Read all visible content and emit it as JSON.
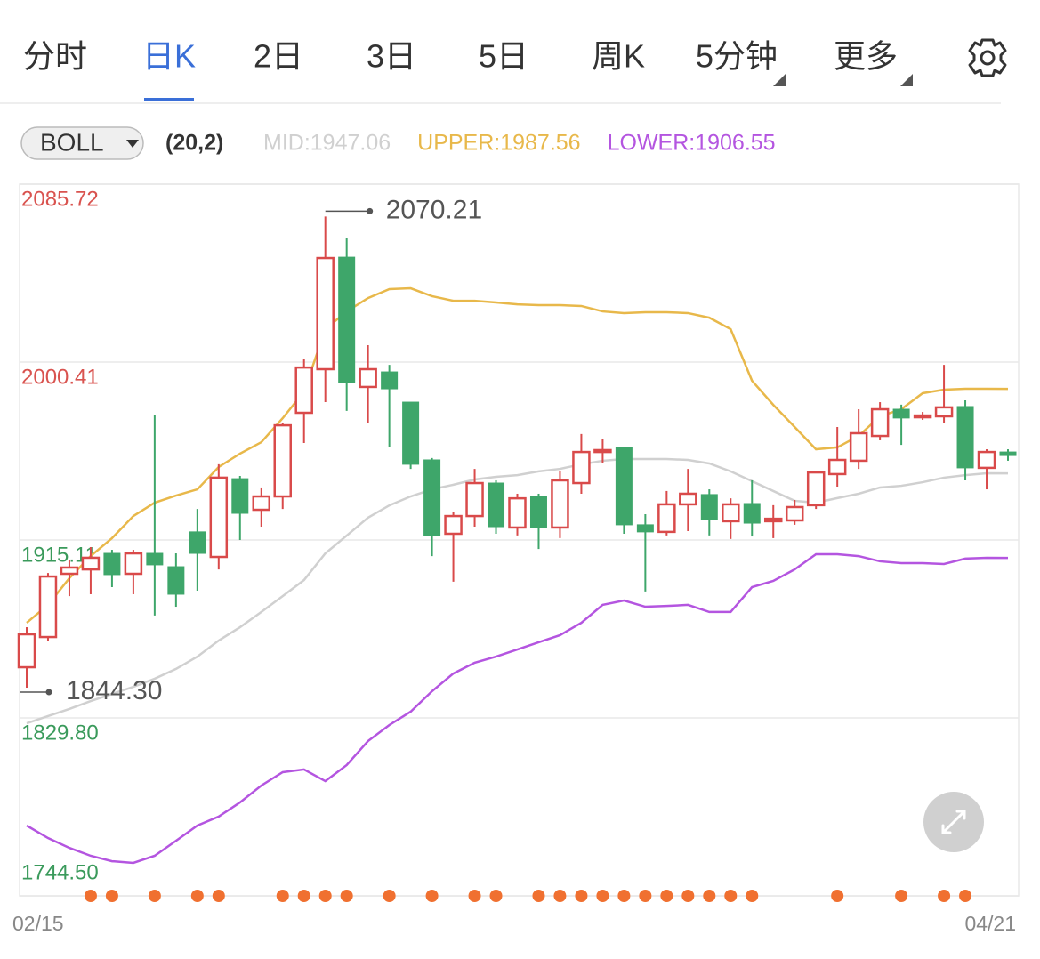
{
  "tabs": [
    "分时",
    "日K",
    "2日",
    "3日",
    "5日",
    "周K",
    "5分钟",
    "更多"
  ],
  "active_tab": 1,
  "indicator": {
    "name": "BOLL",
    "params": "(20,2)"
  },
  "chart_data": {
    "type": "candlestick",
    "categories": [
      "02/15",
      null,
      null,
      null,
      null,
      null,
      null,
      null,
      null,
      null,
      null,
      null,
      null,
      null,
      null,
      null,
      null,
      null,
      null,
      null,
      null,
      null,
      null,
      null,
      null,
      null,
      null,
      null,
      null,
      null,
      null,
      null,
      null,
      null,
      null,
      null,
      null,
      null,
      null,
      null,
      null,
      null,
      null,
      null,
      null,
      null,
      "04/21"
    ],
    "open": [
      1854.1,
      1868.6,
      1898.9,
      1901.0,
      1908.7,
      1898.9,
      1908.7,
      1902.3,
      1919.0,
      1907.0,
      1944.5,
      1929.6,
      1936.0,
      1976.1,
      1997.0,
      2050.7,
      1988.5,
      1995.7,
      1981.2,
      1953.5,
      1918.1,
      1926.6,
      1942.4,
      1921.1,
      1935.9,
      1921.1,
      1942.4,
      1957.3,
      1959.5,
      1922.4,
      1919.0,
      1932.2,
      1936.9,
      1924.1,
      1932.6,
      1924.1,
      1924.5,
      1931.8,
      1946.7,
      1953.1,
      1965.0,
      1977.8,
      1974.4,
      1974.4,
      1979.1,
      1949.7,
      1957.3
    ],
    "high": [
      1873.3,
      1899.3,
      1905.3,
      1911.7,
      1910.4,
      1910.4,
      1974.8,
      1908.7,
      1930.0,
      1951.4,
      1945.8,
      1940.3,
      1971.4,
      2002.1,
      2070.21,
      2059.7,
      2008.5,
      1999.1,
      1981.2,
      1954.4,
      1928.7,
      1949.2,
      1943.7,
      1937.3,
      1937.3,
      1948.0,
      1965.9,
      1963.7,
      1959.5,
      1927.5,
      1938.6,
      1949.2,
      1939.4,
      1935.1,
      1943.7,
      1931.8,
      1934.3,
      1948.0,
      1969.3,
      1977.8,
      1981.2,
      1980.0,
      1976.5,
      1999.1,
      1982.1,
      1958.6,
      1958.6
    ],
    "low": [
      1844.3,
      1866.9,
      1888.2,
      1889.1,
      1892.5,
      1889.1,
      1878.9,
      1883.1,
      1890.8,
      1901.0,
      1915.1,
      1921.5,
      1930.0,
      1961.6,
      1981.2,
      1977.0,
      1971.0,
      1959.5,
      1949.2,
      1907.4,
      1895.1,
      1921.5,
      1918.1,
      1917.3,
      1910.8,
      1916.0,
      1937.3,
      1952.2,
      1918.1,
      1890.4,
      1917.3,
      1919.4,
      1917.3,
      1915.6,
      1916.8,
      1916.0,
      1922.4,
      1930.0,
      1940.7,
      1949.2,
      1962.9,
      1960.7,
      1972.7,
      1971.4,
      1943.7,
      1939.4,
      1953.1
    ],
    "close": [
      1869.9,
      1897.6,
      1901.9,
      1906.6,
      1898.5,
      1908.7,
      1903.2,
      1889.1,
      1908.7,
      1945.0,
      1927.9,
      1936.0,
      1970.1,
      1997.8,
      2050.3,
      1990.6,
      1997.0,
      1987.6,
      1951.4,
      1917.3,
      1926.6,
      1942.4,
      1921.5,
      1935.1,
      1921.1,
      1943.7,
      1957.3,
      1958.2,
      1922.4,
      1919.0,
      1932.2,
      1937.3,
      1924.9,
      1932.2,
      1923.2,
      1925.3,
      1930.9,
      1947.5,
      1953.5,
      1966.3,
      1977.8,
      1973.6,
      1974.8,
      1978.7,
      1949.7,
      1957.3,
      1955.6
    ],
    "up_color": "#d94a4a",
    "down_color": "#3ea66a",
    "series": [
      {
        "name": "MID:1947.06",
        "color": "#d0d0d0",
        "values": [
          1827.2,
          1830.7,
          1834.1,
          1837.9,
          1841.3,
          1844.7,
          1848.6,
          1853.3,
          1859.2,
          1866.9,
          1873.3,
          1880.6,
          1888.2,
          1895.9,
          1908.7,
          1917.2,
          1925.8,
          1931.7,
          1936.0,
          1939.4,
          1941.6,
          1944.1,
          1945.4,
          1946.2,
          1948.0,
          1949.2,
          1951.4,
          1953.1,
          1953.9,
          1953.9,
          1953.9,
          1953.5,
          1951.8,
          1948.0,
          1943.3,
          1938.6,
          1933.9,
          1933.0,
          1935.2,
          1937.3,
          1940.3,
          1941.1,
          1942.8,
          1945.0,
          1946.2,
          1947.1,
          1947.06
        ]
      },
      {
        "name": "UPPER:1987.56",
        "color": "#e8b84a",
        "values": [
          1875.4,
          1884.0,
          1896.8,
          1907.4,
          1916.0,
          1926.6,
          1933.0,
          1936.4,
          1939.4,
          1950.1,
          1956.5,
          1962.0,
          1973.5,
          1986.3,
          2016.2,
          2024.7,
          2031.1,
          2035.4,
          2035.8,
          2032.0,
          2029.8,
          2029.8,
          2029.0,
          2028.1,
          2027.7,
          2027.7,
          2027.3,
          2024.7,
          2023.9,
          2024.3,
          2024.3,
          2023.9,
          2021.7,
          2016.2,
          1991.5,
          1979.9,
          1969.3,
          1958.6,
          1959.5,
          1965.0,
          1974.4,
          1977.8,
          1985.5,
          1987.2,
          1987.6,
          1987.6,
          1987.56
        ]
      },
      {
        "name": "LOWER:1906.55",
        "color": "#b455e0",
        "values": [
          1778.2,
          1772.2,
          1767.5,
          1763.7,
          1761.1,
          1760.3,
          1763.7,
          1770.9,
          1778.2,
          1782.5,
          1789.3,
          1797.4,
          1803.8,
          1805.1,
          1799.5,
          1807.2,
          1818.7,
          1826.4,
          1832.8,
          1842.6,
          1851.1,
          1856.3,
          1859.2,
          1862.6,
          1866.1,
          1869.5,
          1875.4,
          1884.0,
          1886.1,
          1883.1,
          1883.5,
          1884.0,
          1880.6,
          1880.6,
          1892.5,
          1895.5,
          1901.0,
          1908.3,
          1908.3,
          1907.4,
          1904.9,
          1904.0,
          1904.0,
          1903.6,
          1906.2,
          1906.6,
          1906.55
        ]
      }
    ],
    "annotations": [
      "2070.21",
      "1844.30"
    ],
    "ylim": [
      1744.5,
      2085.72
    ],
    "yticks": [
      2085.72,
      2000.41,
      1915.11,
      {
        "value": 1829.8,
        "label": "1829.80"
      },
      {
        "value": 1744.5,
        "label": "1744.50"
      }
    ],
    "ytick_colors": [
      "#d9534f",
      "#d9534f",
      "#3a9a5b",
      "#3a9a5b",
      "#3a9a5b"
    ],
    "grid": true
  }
}
